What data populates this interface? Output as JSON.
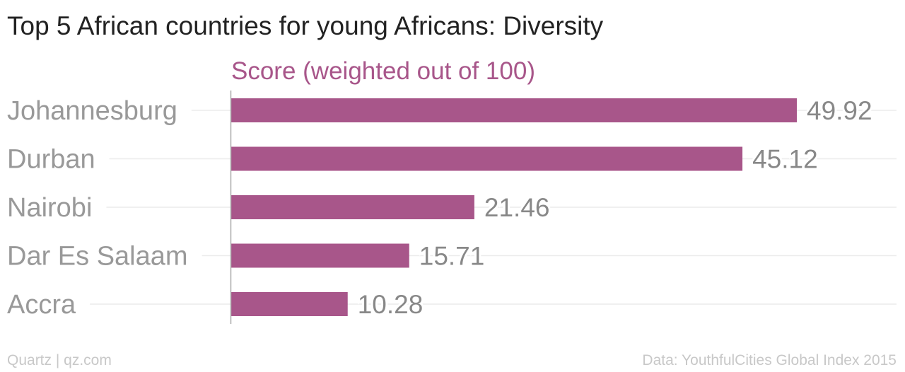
{
  "header": {
    "title": "Top 5 African countries for young Africans: Diversity"
  },
  "chart_data": {
    "type": "bar",
    "orientation": "horizontal",
    "title": "Top 5 African countries for young Africans: Diversity",
    "series": [
      {
        "name": "Score (weighted out of 100)",
        "color": "#a8568a",
        "values": [
          49.92,
          45.12,
          21.46,
          15.71,
          10.28
        ]
      }
    ],
    "categories": [
      "Johannesburg",
      "Durban",
      "Nairobi",
      "Dar Es Salaam",
      "Accra"
    ],
    "value_labels": [
      "49.92",
      "45.12",
      "21.46",
      "15.71",
      "10.28"
    ],
    "xlim": [
      0,
      60
    ],
    "grid": true,
    "data_labels": true
  },
  "footer": {
    "source_left": "Quartz | qz.com",
    "source_right": "Data: YouthfulCities Global Index 2015"
  },
  "colors": {
    "bar": "#a8568a",
    "series_label": "#a8568a",
    "category_label": "#999999",
    "value_label": "#888888",
    "grid": "#ececec",
    "axis": "#aaaaaa"
  }
}
